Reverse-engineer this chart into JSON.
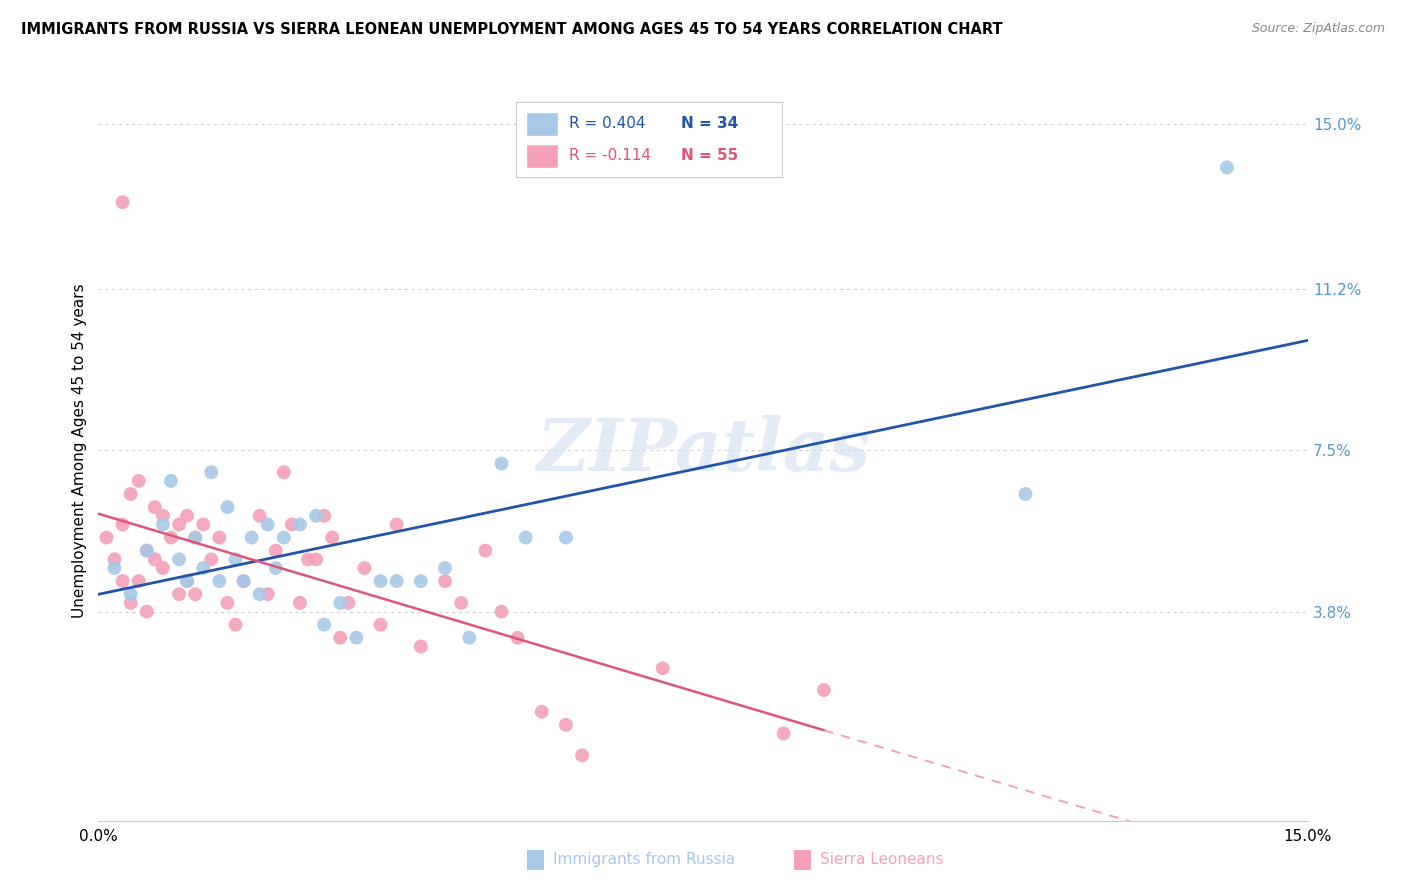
{
  "title": "IMMIGRANTS FROM RUSSIA VS SIERRA LEONEAN UNEMPLOYMENT AMONG AGES 45 TO 54 YEARS CORRELATION CHART",
  "source": "Source: ZipAtlas.com",
  "ylabel": "Unemployment Among Ages 45 to 54 years",
  "xmin": 0.0,
  "xmax": 15.0,
  "ymin": -1.0,
  "ymax": 16.0,
  "ytick_vals": [
    3.8,
    7.5,
    11.2,
    15.0
  ],
  "ytick_labels": [
    "3.8%",
    "7.5%",
    "11.2%",
    "15.0%"
  ],
  "blue_color": "#a8c8e8",
  "pink_color": "#f4a0b8",
  "blue_line_color": "#2255aa",
  "pink_line_color": "#dd5577",
  "pink_dash_color": "#f0a0bb",
  "watermark": "ZIPatlas",
  "blue_R": "R = 0.404",
  "blue_N": "N = 34",
  "pink_R": "R = -0.114",
  "pink_N": "N = 55",
  "blue_label": "Immigrants from Russia",
  "pink_label": "Sierra Leoneans",
  "blue_points_x": [
    0.2,
    0.4,
    0.6,
    0.8,
    0.9,
    1.0,
    1.1,
    1.2,
    1.3,
    1.4,
    1.5,
    1.6,
    1.7,
    1.8,
    1.9,
    2.0,
    2.1,
    2.2,
    2.3,
    2.5,
    2.7,
    2.8,
    3.0,
    3.2,
    3.5,
    3.7,
    4.0,
    4.3,
    4.6,
    5.0,
    5.3,
    5.8,
    11.5,
    14.0
  ],
  "blue_points_y": [
    4.8,
    4.2,
    5.2,
    5.8,
    6.8,
    5.0,
    4.5,
    5.5,
    4.8,
    7.0,
    4.5,
    6.2,
    5.0,
    4.5,
    5.5,
    4.2,
    5.8,
    4.8,
    5.5,
    5.8,
    6.0,
    3.5,
    4.0,
    3.2,
    4.5,
    4.5,
    4.5,
    4.8,
    3.2,
    7.2,
    5.5,
    5.5,
    6.5,
    14.0
  ],
  "pink_points_x": [
    0.1,
    0.2,
    0.3,
    0.3,
    0.4,
    0.4,
    0.5,
    0.5,
    0.6,
    0.6,
    0.7,
    0.7,
    0.8,
    0.8,
    0.9,
    1.0,
    1.0,
    1.1,
    1.1,
    1.2,
    1.2,
    1.3,
    1.4,
    1.5,
    1.6,
    1.7,
    1.8,
    2.0,
    2.1,
    2.2,
    2.3,
    2.4,
    2.5,
    2.6,
    2.7,
    2.8,
    2.9,
    3.0,
    3.1,
    3.3,
    3.5,
    3.7,
    4.0,
    4.3,
    4.5,
    4.8,
    5.0,
    5.2,
    5.5,
    5.8,
    6.0,
    7.0,
    8.5,
    9.0,
    0.3
  ],
  "pink_points_y": [
    5.5,
    5.0,
    5.8,
    4.5,
    6.5,
    4.0,
    6.8,
    4.5,
    5.2,
    3.8,
    5.0,
    6.2,
    6.0,
    4.8,
    5.5,
    5.8,
    4.2,
    6.0,
    4.5,
    5.5,
    4.2,
    5.8,
    5.0,
    5.5,
    4.0,
    3.5,
    4.5,
    6.0,
    4.2,
    5.2,
    7.0,
    5.8,
    4.0,
    5.0,
    5.0,
    6.0,
    5.5,
    3.2,
    4.0,
    4.8,
    3.5,
    5.8,
    3.0,
    4.5,
    4.0,
    5.2,
    3.8,
    3.2,
    1.5,
    1.2,
    0.5,
    2.5,
    1.0,
    2.0,
    13.2
  ]
}
